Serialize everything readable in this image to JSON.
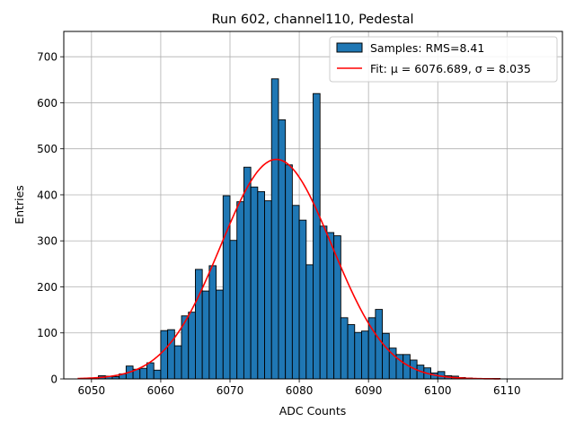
{
  "chart_data": {
    "type": "bar",
    "title": "Run 602, channel110, Pedestal",
    "xlabel": "ADC Counts",
    "ylabel": "Entries",
    "xlim": [
      6046,
      6118
    ],
    "ylim": [
      0,
      755
    ],
    "xticks": [
      6050,
      6060,
      6070,
      6080,
      6090,
      6100,
      6110
    ],
    "yticks": [
      0,
      100,
      200,
      300,
      400,
      500,
      600,
      700
    ],
    "grid": true,
    "legend_position": "top-right",
    "bin_width": 1,
    "bins": [
      [
        6051,
        7
      ],
      [
        6052,
        6
      ],
      [
        6053,
        5
      ],
      [
        6054,
        11
      ],
      [
        6055,
        28
      ],
      [
        6056,
        21
      ],
      [
        6057,
        23
      ],
      [
        6058,
        35
      ],
      [
        6059,
        19
      ],
      [
        6060,
        105
      ],
      [
        6061,
        107
      ],
      [
        6062,
        72
      ],
      [
        6063,
        137
      ],
      [
        6064,
        145
      ],
      [
        6065,
        238
      ],
      [
        6066,
        191
      ],
      [
        6067,
        246
      ],
      [
        6068,
        193
      ],
      [
        6069,
        398
      ],
      [
        6070,
        301
      ],
      [
        6071,
        385
      ],
      [
        6072,
        460
      ],
      [
        6073,
        417
      ],
      [
        6074,
        407
      ],
      [
        6075,
        387
      ],
      [
        6076,
        652
      ],
      [
        6077,
        563
      ],
      [
        6078,
        465
      ],
      [
        6079,
        377
      ],
      [
        6080,
        345
      ],
      [
        6081,
        248
      ],
      [
        6082,
        620
      ],
      [
        6083,
        332
      ],
      [
        6084,
        318
      ],
      [
        6085,
        311
      ],
      [
        6086,
        133
      ],
      [
        6087,
        118
      ],
      [
        6088,
        101
      ],
      [
        6089,
        104
      ],
      [
        6090,
        133
      ],
      [
        6091,
        151
      ],
      [
        6092,
        99
      ],
      [
        6093,
        67
      ],
      [
        6094,
        53
      ],
      [
        6095,
        53
      ],
      [
        6096,
        41
      ],
      [
        6097,
        30
      ],
      [
        6098,
        24
      ],
      [
        6099,
        13
      ],
      [
        6100,
        16
      ],
      [
        6101,
        7
      ],
      [
        6102,
        6
      ],
      [
        6103,
        3
      ],
      [
        6104,
        2
      ],
      [
        6105,
        1
      ],
      [
        6106,
        1
      ],
      [
        6107,
        1
      ],
      [
        6108,
        1
      ]
    ],
    "fit": {
      "mu": 6076.689,
      "sigma": 8.035,
      "amplitude": 477,
      "x_range": [
        6048,
        6109
      ]
    },
    "series": [
      {
        "name": "Samples: RMS=8.41",
        "color": "#1f77b4",
        "kind": "histogram"
      },
      {
        "name": "Fit: μ = 6076.689, σ = 8.035",
        "color": "#ff0000",
        "kind": "line"
      }
    ]
  }
}
